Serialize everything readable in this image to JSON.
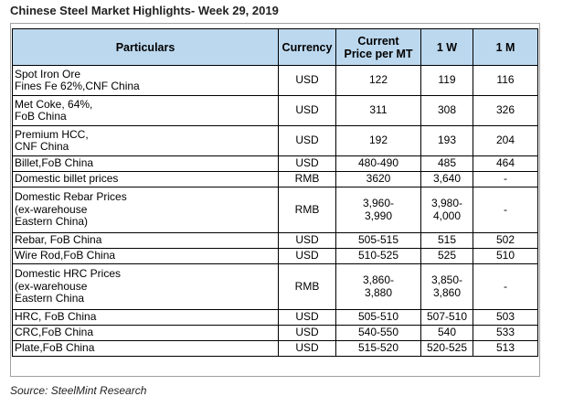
{
  "title": "Chinese Steel Market Highlights- Week 29, 2019",
  "table": {
    "headers": {
      "particulars": "Particulars",
      "currency": "Currency",
      "current_line1": "Current",
      "current_line2": "Price per MT",
      "w1": "1 W",
      "m1": "1 M"
    },
    "rows": [
      {
        "lines": [
          "Spot Iron Ore",
          "Fines Fe 62%,CNF China"
        ],
        "currency": "USD",
        "current": [
          "122"
        ],
        "w1": [
          "119"
        ],
        "m1": "116"
      },
      {
        "lines": [
          "Met Coke, 64%,",
          "FoB China"
        ],
        "currency": "USD",
        "current": [
          "311"
        ],
        "w1": [
          "308"
        ],
        "m1": "326"
      },
      {
        "lines": [
          "Premium HCC,",
          "CNF China"
        ],
        "currency": "USD",
        "current": [
          "192"
        ],
        "w1": [
          "193"
        ],
        "m1": "204"
      },
      {
        "lines": [
          "Billet,FoB China"
        ],
        "currency": "USD",
        "current": [
          "480-490"
        ],
        "w1": [
          "485"
        ],
        "m1": "464"
      },
      {
        "lines": [
          "Domestic billet prices"
        ],
        "currency": "RMB",
        "current": [
          "3620"
        ],
        "w1": [
          "3,640"
        ],
        "m1": "-"
      },
      {
        "lines": [
          "Domestic Rebar Prices",
          "(ex-warehouse",
          "Eastern China)"
        ],
        "currency": "RMB",
        "current": [
          "3,960-",
          "3,990"
        ],
        "w1": [
          "3,980-",
          "4,000"
        ],
        "m1": "-"
      },
      {
        "lines": [
          "Rebar, FoB China"
        ],
        "currency": "USD",
        "current": [
          "505-515"
        ],
        "w1": [
          "515"
        ],
        "m1": "502"
      },
      {
        "lines": [
          "Wire Rod,FoB China"
        ],
        "currency": "USD",
        "current": [
          "510-525"
        ],
        "w1": [
          "525"
        ],
        "m1": "510"
      },
      {
        "lines": [
          "Domestic HRC Prices",
          "(ex-warehouse",
          "Eastern China"
        ],
        "currency": "RMB",
        "current": [
          "3,860-",
          "3,880"
        ],
        "w1": [
          "3,850-",
          "3,860"
        ],
        "m1": "-"
      },
      {
        "lines": [
          "HRC, FoB China"
        ],
        "currency": "USD",
        "current": [
          "505-510"
        ],
        "w1": [
          "507-510"
        ],
        "m1": "503"
      },
      {
        "lines": [
          "CRC,FoB China"
        ],
        "currency": "USD",
        "current": [
          "540-550"
        ],
        "w1": [
          "540"
        ],
        "m1": "533"
      },
      {
        "lines": [
          "Plate,FoB China"
        ],
        "currency": "USD",
        "current": [
          "515-520"
        ],
        "w1": [
          "520-525"
        ],
        "m1": "513"
      }
    ]
  },
  "source": "Source: SteelMint Research"
}
